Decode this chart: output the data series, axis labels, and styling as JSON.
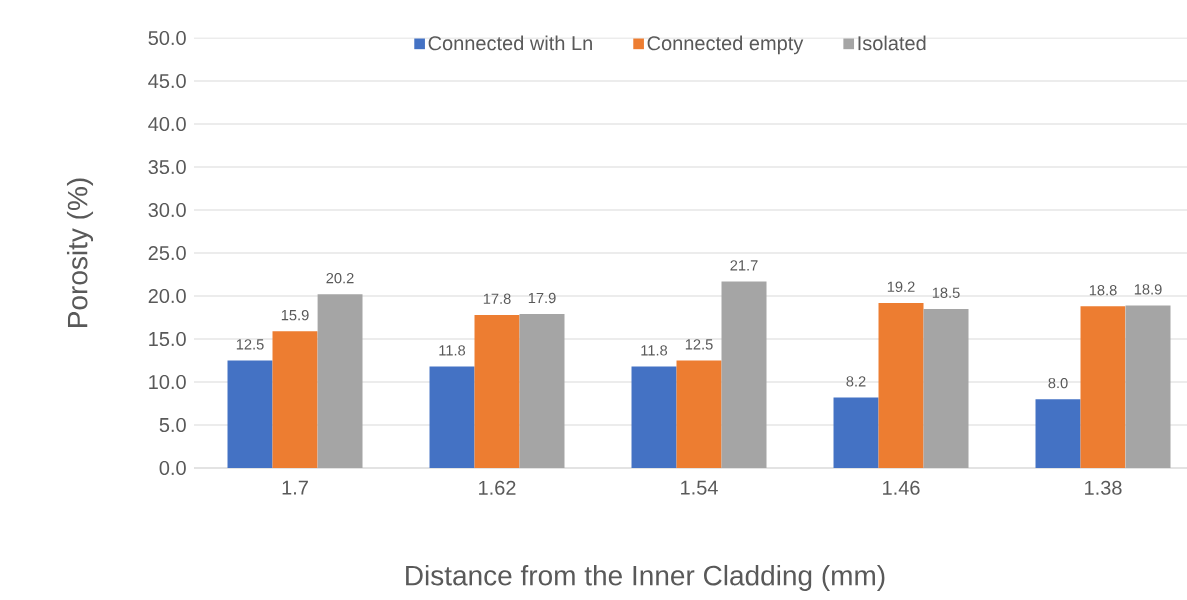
{
  "chart_data": {
    "type": "bar",
    "xlabel": "Distance from the Inner Cladding (mm)",
    "ylabel": "Porosity (%)",
    "categories": [
      "1.7",
      "1.62",
      "1.54",
      "1.46",
      "1.38"
    ],
    "series": [
      {
        "name": "Connected with Ln",
        "color": "#4472c4",
        "values": [
          12.5,
          11.8,
          11.8,
          8.2,
          8.0
        ],
        "value_labels": [
          "12.5",
          "11.8",
          "11.8",
          "8.2",
          "8.0"
        ]
      },
      {
        "name": "Connected empty",
        "color": "#ed7d31",
        "values": [
          15.9,
          17.8,
          12.5,
          19.2,
          18.8
        ],
        "value_labels": [
          "15.9",
          "17.8",
          "12.5",
          "19.2",
          "18.8"
        ]
      },
      {
        "name": "Isolated",
        "color": "#a5a5a5",
        "values": [
          20.2,
          17.9,
          21.7,
          18.5,
          18.9
        ],
        "value_labels": [
          "20.2",
          "17.9",
          "21.7",
          "18.5",
          "18.9"
        ]
      }
    ],
    "ylim": [
      0,
      50
    ],
    "yticks": [
      {
        "value": 0,
        "label": "0.0"
      },
      {
        "value": 5,
        "label": "5.0"
      },
      {
        "value": 10,
        "label": "10.0"
      },
      {
        "value": 15,
        "label": "15.0"
      },
      {
        "value": 20,
        "label": "20.0"
      },
      {
        "value": 25,
        "label": "25.0"
      },
      {
        "value": 30,
        "label": "30.0"
      },
      {
        "value": 35,
        "label": "35.0"
      },
      {
        "value": 40,
        "label": "40.0"
      },
      {
        "value": 45,
        "label": "45.0"
      },
      {
        "value": 50,
        "label": "50.0"
      }
    ],
    "grid": "y",
    "legend": "top"
  }
}
